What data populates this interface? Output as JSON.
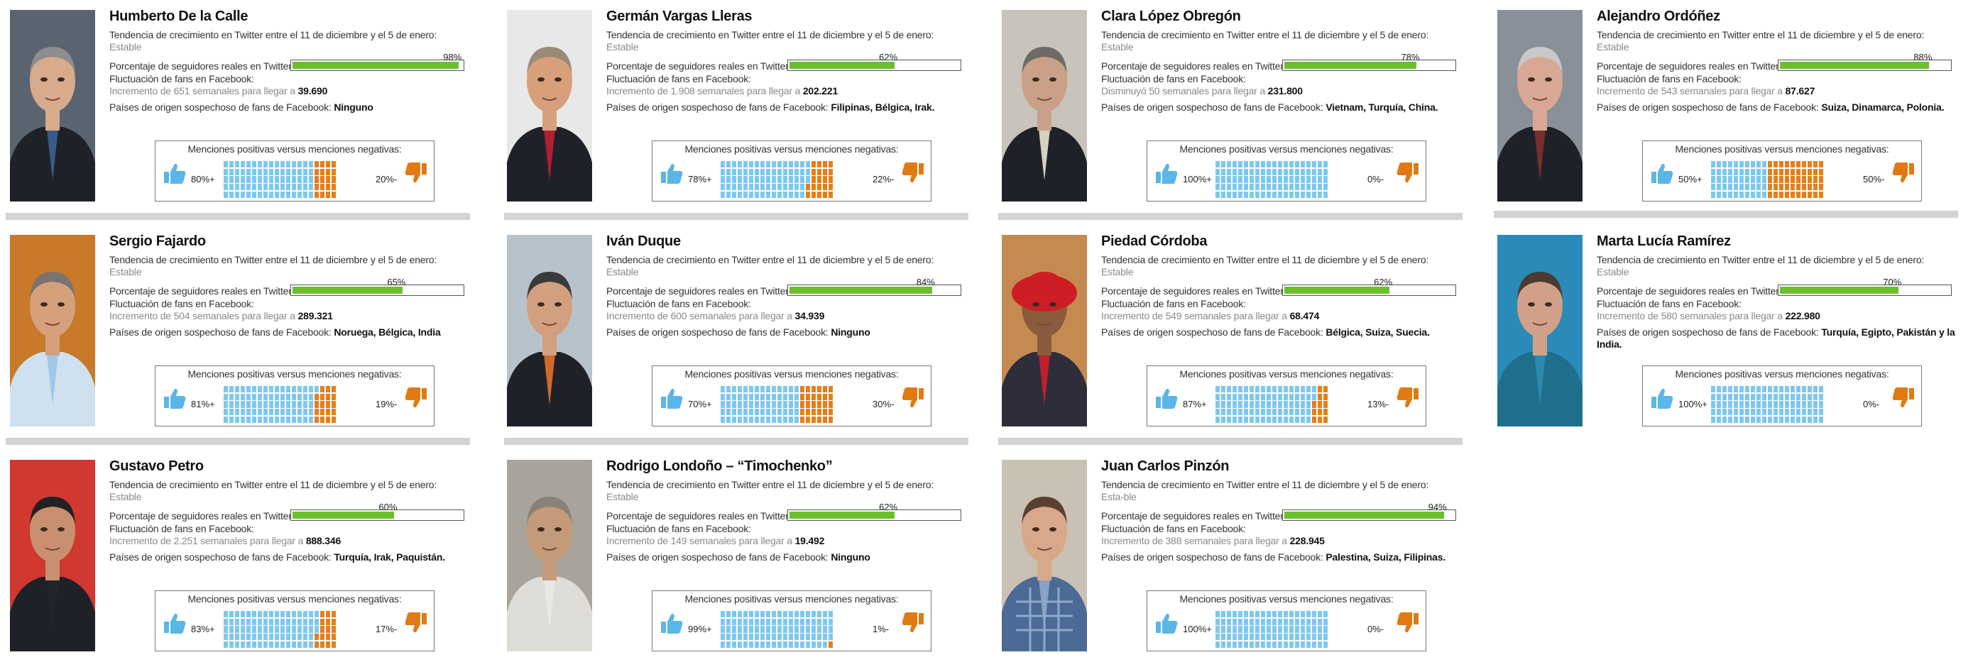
{
  "candidates": [
    {
      "name": "Humberto De la Calle",
      "tw_label": "Tendencia de crecimiento en Twitter entre el 11 de diciembre y el 5 de enero:",
      "tw_trend": "Estable",
      "real_label": "Porcentaje de seguidores reales en Twitter:",
      "real_pct": "98%",
      "real_value": 98,
      "fb_label": "Fluctuación de fans en Facebook:",
      "fb_text": "Incremento de 651 semanales para llegar a",
      "fb_total": "39.690",
      "orig_label": "Países de origen sospechoso de fans de Facebook:",
      "orig_value": "Ninguno",
      "m_title": "Menciones positivas versus menciones negativas:",
      "pos": "80%+",
      "neg": "20%-",
      "pos_value": 80,
      "suit": "dark",
      "tie": "#3a5a8a",
      "skin": "#d8ab8c",
      "hair": "#8d8d8d",
      "bg": "#5a6470"
    },
    {
      "name": "Germán Vargas Lleras",
      "tw_label": "Tendencia de crecimiento en Twitter entre el 11 de diciembre y el 5 de enero:",
      "tw_trend": "Estable",
      "real_label": "Porcentaje de seguidores reales en Twitter:",
      "real_pct": "62%",
      "real_value": 62,
      "fb_label": "Fluctuación de fans en Facebook:",
      "fb_text": "Incremento de 1.908 semanales para llegar a",
      "fb_total": "202.221",
      "orig_label": "Países de origen sospechoso de fans de Facebook:",
      "orig_value": "Filipinas, Bélgica, Irak.",
      "m_title": "Menciones positivas versus menciones negativas:",
      "pos": "78%+",
      "neg": "22%-",
      "pos_value": 78,
      "suit": "dark",
      "tie": "#b02030",
      "skin": "#d7a07a",
      "hair": "#9a8a78",
      "bg": "#e8e8e8"
    },
    {
      "name": "Clara López Obregón",
      "tw_label": "Tendencia de crecimiento en Twitter entre el 11 de diciembre y el 5 de enero:",
      "tw_trend": "Estable",
      "real_label": "Porcentaje de seguidores reales en Twitter:",
      "real_pct": "78%",
      "real_value": 78,
      "fb_label": "Fluctuación de fans en Facebook:",
      "fb_text": "Disminuyó 50 semanales para llegar a",
      "fb_total": "231.800",
      "orig_label": "Países de origen sospechoso de fans de Facebook:",
      "orig_value": "Vietnam, Turquía, China.",
      "m_title": "Menciones positivas versus menciones negativas:",
      "pos": "100%+",
      "neg": "0%-",
      "pos_value": 100,
      "suit": "dark",
      "tie": "#d8d0c0",
      "skin": "#caa088",
      "hair": "#6e6a66",
      "bg": "#c8c3bb"
    },
    {
      "name": "Alejandro Ordóñez",
      "tw_label": "Tendencia de crecimiento en Twitter entre el 11 de diciembre y el 5 de enero:",
      "tw_trend": "Estable",
      "real_label": "Porcentaje de seguidores reales en Twitter:",
      "real_pct": "88%",
      "real_value": 88,
      "fb_label": "Fluctuación de fans en Facebook:",
      "fb_text": "Incremento de 543 semanales para llegar a",
      "fb_total": "87.627",
      "orig_label": "Países de origen sospechoso de fans de Facebook:",
      "orig_value": "Suiza, Dinamarca, Polonia.",
      "m_title": "Menciones positivas versus menciones negativas:",
      "pos": "50%+",
      "neg": "50%-",
      "pos_value": 50,
      "suit": "dark",
      "tie": "#7a2d2d",
      "skin": "#d9a894",
      "hair": "#c8c8c8",
      "bg": "#8a9099"
    },
    {
      "name": "Sergio Fajardo",
      "tw_label": "Tendencia de crecimiento en Twitter entre el 11 de diciembre y el 5 de enero:",
      "tw_trend": "Estable",
      "real_label": "Porcentaje de seguidores reales en Twitter:",
      "real_pct": "65%",
      "real_value": 65,
      "fb_label": "Fluctuación de fans en Facebook:",
      "fb_text": "Incremento de 504 semanales para llegar a",
      "fb_total": "289.321",
      "orig_label": "Países de origen sospechoso de fans de Facebook:",
      "orig_value": "Noruega, Bélgica, India",
      "m_title": "Menciones positivas versus menciones negativas:",
      "pos": "81%+",
      "neg": "19%-",
      "pos_value": 81,
      "suit": "light",
      "tie": "#9ec7e8",
      "skin": "#d6a07c",
      "hair": "#7a7370",
      "bg": "#c87a2a"
    },
    {
      "name": "Iván Duque",
      "tw_label": "Tendencia de crecimiento en Twitter entre el 11 de diciembre y el 5 de enero:",
      "tw_trend": "Estable",
      "real_label": "Porcentaje de seguidores reales en Twitter:",
      "real_pct": "84%",
      "real_value": 84,
      "fb_label": "Fluctuación de fans en Facebook:",
      "fb_text": "Incremento de 600 semanales para llegar a",
      "fb_total": "34.939",
      "orig_label": "Países de origen sospechoso de fans de Facebook:",
      "orig_value": "Ninguno",
      "m_title": "Menciones positivas versus menciones negativas:",
      "pos": "70%+",
      "neg": "30%-",
      "pos_value": 70,
      "suit": "dark",
      "tie": "#d06a2a",
      "skin": "#d2a07e",
      "hair": "#3a3a3a",
      "bg": "#b8c2cc"
    },
    {
      "name": "Piedad Córdoba",
      "tw_label": "Tendencia de crecimiento en Twitter entre el 11 de diciembre y el 5 de enero:",
      "tw_trend": "Estable",
      "real_label": "Porcentaje de seguidores reales en Twitter:",
      "real_pct": "62%",
      "real_value": 62,
      "fb_label": "Fluctuación de fans en Facebook:",
      "fb_text": "Incremento de 549 semanales para llegar a",
      "fb_total": "68.474",
      "orig_label": "Países de origen sospechoso de fans de Facebook:",
      "orig_value": "Bélgica, Suiza, Suecia.",
      "m_title": "Menciones positivas versus menciones negativas:",
      "pos": "87%+",
      "neg": "13%-",
      "pos_value": 87,
      "suit": "red",
      "tie": "#c0202a",
      "skin": "#8a5a3c",
      "hair": "#d02020",
      "bg": "#c48a50"
    },
    {
      "name": "Marta Lucía Ramírez",
      "tw_label": "Tendencia de crecimiento en Twitter entre el 11 de diciembre y el 5 de enero:",
      "tw_trend": "Estable",
      "real_label": "Porcentaje de seguidores reales en Twitter:",
      "real_pct": "70%",
      "real_value": 70,
      "fb_label": "Fluctuación de fans en Facebook:",
      "fb_text": "Incremento de 580 semanales para llegar a",
      "fb_total": "222.980",
      "orig_label": "Países de origen sospechoso de fans de Facebook:",
      "orig_value": "Turquía, Egipto, Pakistán y la India.",
      "m_title": "Menciones positivas versus menciones negativas:",
      "pos": "100%+",
      "neg": "0%-",
      "pos_value": 100,
      "suit": "teal",
      "tie": "#2a8ab0",
      "skin": "#d0a088",
      "hair": "#4a3a30",
      "bg": "#2a8ab8"
    },
    {
      "name": "Gustavo Petro",
      "tw_label": "Tendencia de crecimiento en Twitter entre el 11 de diciembre y el 5 de enero:",
      "tw_trend": "Estable",
      "real_label": "Porcentaje de seguidores reales en Twitter:",
      "real_pct": "60%",
      "real_value": 60,
      "fb_label": "Fluctuación de fans en Facebook:",
      "fb_text": "Incremento de 2.251 semanales para llegar a",
      "fb_total": "888.346",
      "orig_label": "Países de origen sospechoso de fans de Facebook:",
      "orig_value": "Turquía, Irak, Paquistán.",
      "m_title": "Menciones positivas versus menciones negativas:",
      "pos": "83%+",
      "neg": "17%-",
      "pos_value": 83,
      "suit": "dark",
      "tie": "#20262c",
      "skin": "#c89070",
      "hair": "#222222",
      "bg": "#d03830"
    },
    {
      "name": "Rodrigo Londoño – “Timochenko”",
      "tw_label": "Tendencia de crecimiento en Twitter entre el 11 de diciembre y el 5 de enero:",
      "tw_trend": "Estable",
      "real_label": "Porcentaje de seguidores reales en Twitter:",
      "real_pct": "62%",
      "real_value": 62,
      "fb_label": "Fluctuación de fans en Facebook:",
      "fb_text": "Incremento de 149 semanales para llegar a",
      "fb_total": "19.492",
      "orig_label": "Países de origen sospechoso de fans de Facebook:",
      "orig_value": "Ninguno",
      "m_title": "Menciones positivas versus menciones negativas:",
      "pos": "99%+",
      "neg": "1%-",
      "pos_value": 99,
      "suit": "white",
      "tie": "#e8e8e8",
      "skin": "#c49a78",
      "hair": "#8a8276",
      "bg": "#a8a49c"
    },
    {
      "name": "Juan Carlos Pinzón",
      "tw_label": "Tendencia de crecimiento en Twitter entre el 11 de diciembre y el 5 de enero:",
      "tw_trend": "Esta-ble",
      "real_label": "Porcentaje de seguidores reales en Twitter:",
      "real_pct": "94%",
      "real_value": 94,
      "fb_label": "Fluctuación de fans en Facebook:",
      "fb_text": "Incremento de 388 semanales para llegar a",
      "fb_total": "228.945",
      "orig_label": "Países de origen sospechoso de fans de Facebook:",
      "orig_value": "Palestina, Suiza, Filipinas.",
      "m_title": "Menciones positivas versus menciones negativas:",
      "pos": "100%+",
      "neg": "0%-",
      "pos_value": 100,
      "suit": "plaid",
      "tie": "#8aa0c0",
      "skin": "#d8a88a",
      "hair": "#5a4030",
      "bg": "#c9c1b4"
    }
  ],
  "colors": {
    "bar": "#6bbf2c",
    "positive": "#7ec8ee",
    "negative": "#e67e19",
    "thumb_up": "#5ab6e6",
    "thumb_down": "#e07a14",
    "separator": "#d5d3d1"
  }
}
